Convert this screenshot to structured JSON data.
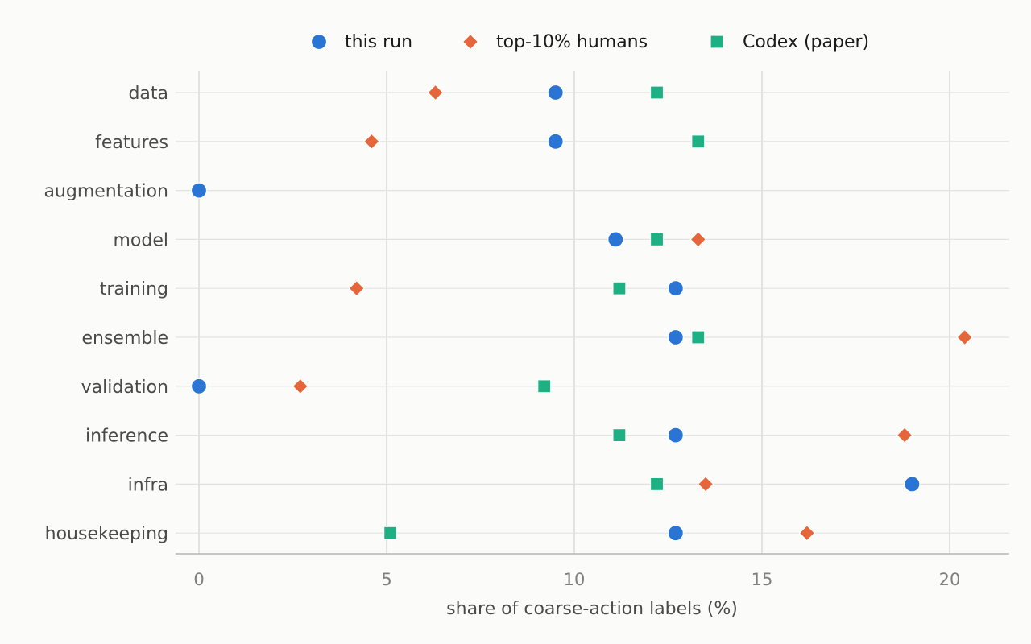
{
  "chart_data": {
    "type": "scatter",
    "title": "",
    "xlabel": "share of coarse-action labels (%)",
    "ylabel": "",
    "xlim": [
      -0.6,
      21.6
    ],
    "xticks": [
      0,
      5,
      10,
      15,
      20
    ],
    "grid": true,
    "legend_position": "top",
    "categories": [
      "data",
      "features",
      "augmentation",
      "model",
      "training",
      "ensemble",
      "validation",
      "inference",
      "infra",
      "housekeeping"
    ],
    "series": [
      {
        "name": "this run",
        "marker": "circle",
        "color": "#2a75d3",
        "values": [
          9.5,
          9.5,
          0,
          11.1,
          12.7,
          12.7,
          0,
          12.7,
          19.0,
          12.7
        ]
      },
      {
        "name": "top-10% humans",
        "marker": "diamond",
        "color": "#e5663a",
        "values": [
          6.3,
          4.6,
          null,
          13.3,
          4.2,
          20.4,
          2.7,
          18.8,
          13.5,
          16.2
        ]
      },
      {
        "name": "Codex (paper)",
        "marker": "square",
        "color": "#1db082",
        "values": [
          12.2,
          13.3,
          null,
          12.2,
          11.2,
          13.3,
          9.2,
          11.2,
          12.2,
          5.1
        ]
      }
    ]
  }
}
